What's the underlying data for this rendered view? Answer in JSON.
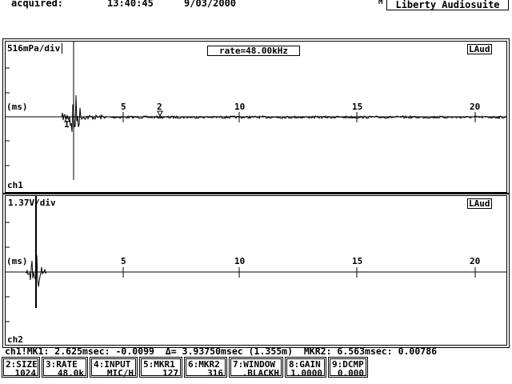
{
  "header": {
    "acquired_label": "acquired:",
    "time": "13:40:45",
    "date": "9/03/2000",
    "mode_indicator": "M",
    "app_title": "Liberty Audiosuite"
  },
  "panels": [
    {
      "scale": "516mPa/div",
      "rate": "rate=48.00kHz",
      "logo": "LAud",
      "unit": "(ms)",
      "channel": "ch1",
      "ticks": [
        "5",
        "10",
        "15",
        "20"
      ],
      "markers": [
        "1",
        "2"
      ]
    },
    {
      "scale": "1.37V/div",
      "logo": "LAud",
      "unit": "(ms)",
      "channel": "ch2",
      "ticks": [
        "5",
        "10",
        "15",
        "20"
      ]
    }
  ],
  "status_line": "ch1!MK1: 2.625msec: -0.0099  Δ= 3.93750msec (1.355m)  MKR2: 6.563msec: 0.00786",
  "function_keys": [
    {
      "key": "2:SIZE",
      "value": "1024"
    },
    {
      "key": "3:RATE",
      "value": "48.0k"
    },
    {
      "key": "4:INPUT",
      "value": "MIC/H"
    },
    {
      "key": "5:MKR1",
      "value": "127"
    },
    {
      "key": "6:MKR2",
      "value": "316"
    },
    {
      "key": "7:WINDOW",
      "value": ".BLACKH"
    },
    {
      "key": "8:GAIN",
      "value": "1.0000"
    },
    {
      "key": "9:DCMP",
      "value": "0.000"
    }
  ],
  "colors": {
    "foreground": "#000000",
    "background": "#ffffff"
  }
}
